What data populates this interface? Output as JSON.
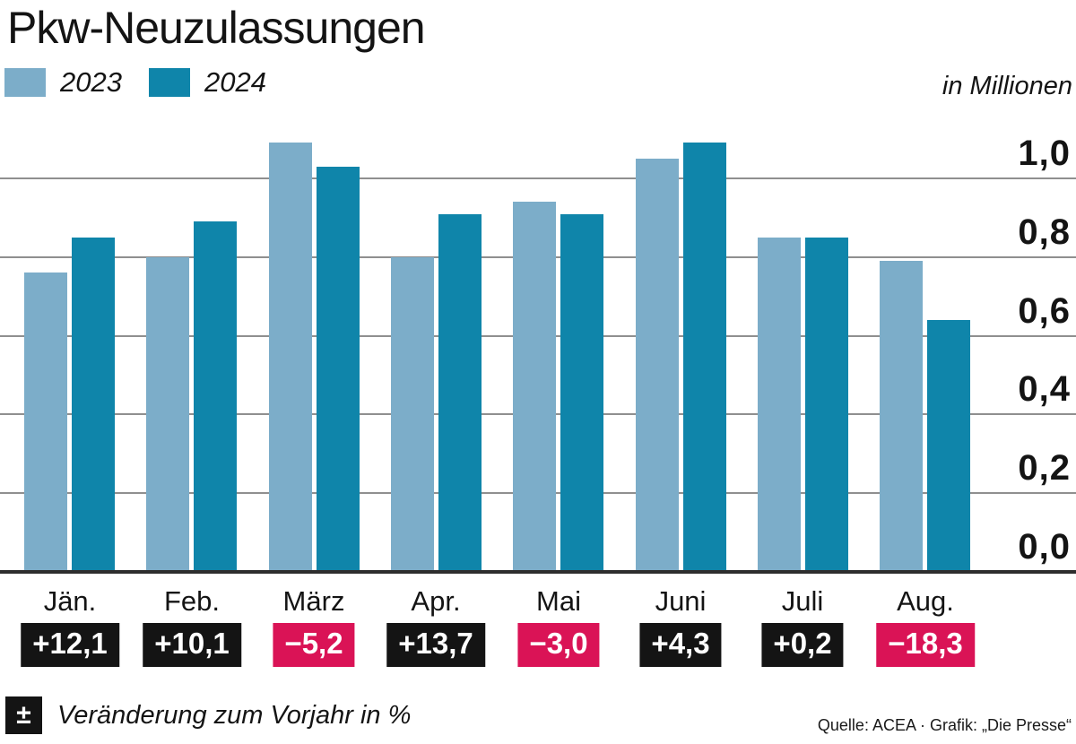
{
  "chart_data": {
    "type": "bar",
    "title": "Pkw-Neuzulassungen",
    "unit_label": "in Millionen",
    "categories": [
      "Jän.",
      "Feb.",
      "März",
      "Apr.",
      "Mai",
      "Juni",
      "Juli",
      "Aug."
    ],
    "series": [
      {
        "name": "2023",
        "color": "#7cadc9",
        "values": [
          0.76,
          0.8,
          1.09,
          0.8,
          0.94,
          1.05,
          0.85,
          0.79
        ]
      },
      {
        "name": "2024",
        "color": "#0f85aa",
        "values": [
          0.85,
          0.89,
          1.03,
          0.91,
          0.91,
          1.09,
          0.85,
          0.64
        ]
      }
    ],
    "change_labels": [
      "+12,1",
      "+10,1",
      "−5,2",
      "+13,7",
      "−3,0",
      "+4,3",
      "+0,2",
      "−18,3"
    ],
    "change_negative": [
      false,
      false,
      true,
      false,
      true,
      false,
      false,
      true
    ],
    "y_ticks": [
      {
        "value": 0.0,
        "label": "0,0"
      },
      {
        "value": 0.2,
        "label": "0,2"
      },
      {
        "value": 0.4,
        "label": "0,4"
      },
      {
        "value": 0.6,
        "label": "0,6"
      },
      {
        "value": 0.8,
        "label": "0,8"
      },
      {
        "value": 1.0,
        "label": "1,0"
      }
    ],
    "ylim": [
      0,
      1.1
    ],
    "grid": true,
    "legend_position": "top-left",
    "colors": {
      "positive_badge": "#141414",
      "negative_badge": "#da1356",
      "badge_text": "#ffffff",
      "gridline": "#8f8f8f",
      "axis": "#2e2e2e"
    }
  },
  "footer": {
    "icon_glyph": "±",
    "note": "Veränderung zum Vorjahr in %",
    "source": "Quelle: ACEA · Grafik: „Die Presse“"
  }
}
